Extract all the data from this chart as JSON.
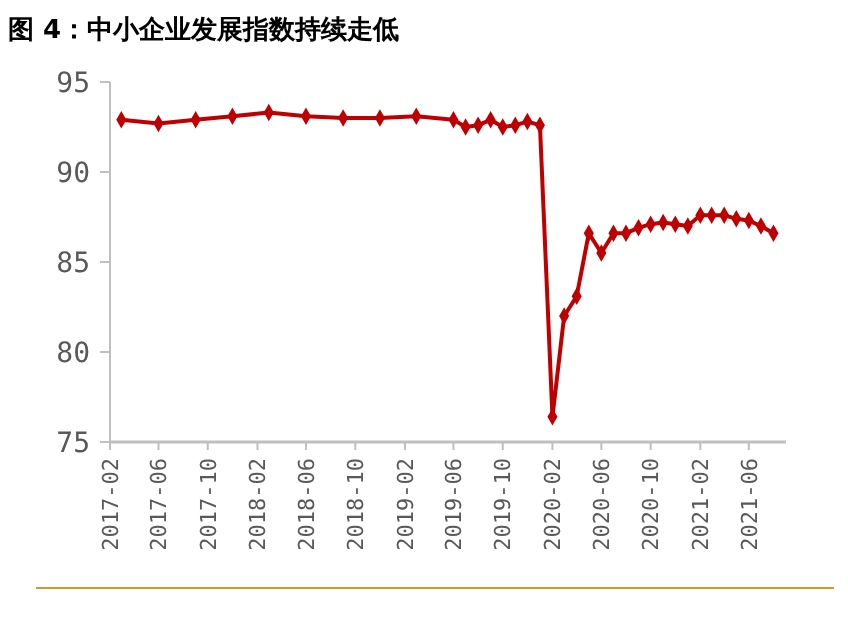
{
  "chart_data": {
    "type": "line",
    "title": "图 4：中小企业发展指数持续走低",
    "x": [
      "2017-03",
      "2017-06",
      "2017-09",
      "2017-12",
      "2018-03",
      "2018-06",
      "2018-09",
      "2018-12",
      "2019-03",
      "2019-06",
      "2019-07",
      "2019-08",
      "2019-09",
      "2019-10",
      "2019-11",
      "2019-12",
      "2020-01",
      "2020-02",
      "2020-03",
      "2020-04",
      "2020-05",
      "2020-06",
      "2020-07",
      "2020-08",
      "2020-09",
      "2020-10",
      "2020-11",
      "2020-12",
      "2021-01",
      "2021-02",
      "2021-03",
      "2021-04",
      "2021-05",
      "2021-06",
      "2021-07",
      "2021-08"
    ],
    "series": [
      {
        "color": "#c00000",
        "values": [
          92.9,
          92.7,
          92.9,
          93.1,
          93.3,
          93.1,
          93.0,
          93.0,
          93.1,
          92.9,
          92.5,
          92.6,
          92.9,
          92.5,
          92.6,
          92.8,
          92.6,
          76.4,
          82.0,
          83.1,
          86.6,
          85.5,
          86.6,
          86.6,
          86.9,
          87.1,
          87.2,
          87.1,
          87.0,
          87.6,
          87.6,
          87.6,
          87.4,
          87.3,
          87.0,
          86.6
        ]
      }
    ],
    "xlim": [
      "2017-02",
      "2021-09"
    ],
    "xticks": [
      "2017-02",
      "2017-06",
      "2017-10",
      "2018-02",
      "2018-06",
      "2018-10",
      "2019-02",
      "2019-06",
      "2019-10",
      "2020-02",
      "2020-06",
      "2020-10",
      "2021-02",
      "2021-06"
    ],
    "ylim": [
      75,
      95
    ],
    "yticks": [
      75,
      80,
      85,
      90,
      95
    ],
    "marker": "diamond",
    "line_style": "solid"
  }
}
